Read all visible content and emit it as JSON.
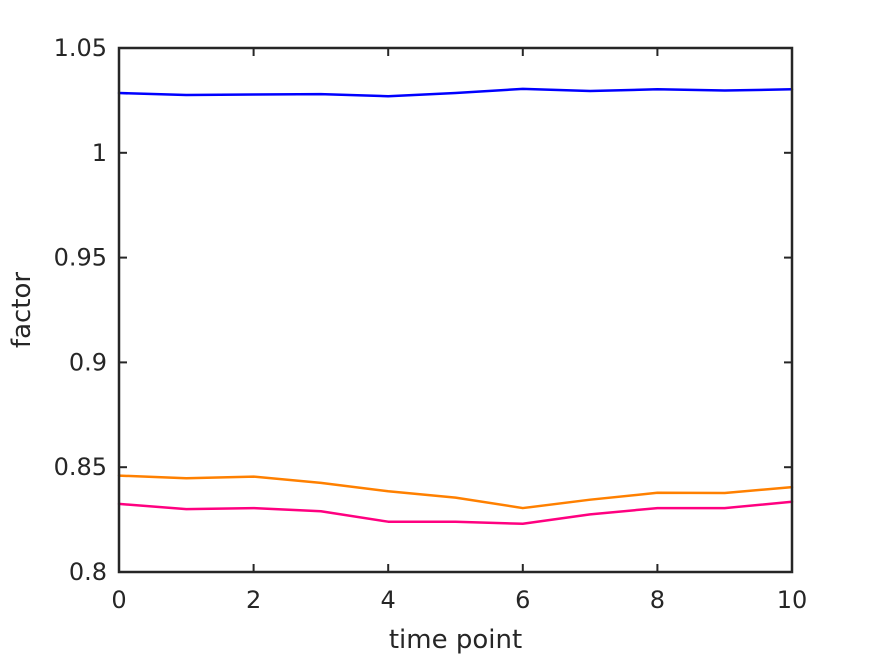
{
  "chart_data": {
    "type": "line",
    "xlabel": "time point",
    "ylabel": "factor",
    "xlim": [
      0,
      10
    ],
    "ylim": [
      0.8,
      1.05
    ],
    "xticks": [
      0,
      2,
      4,
      6,
      8,
      10
    ],
    "xtick_labels": [
      "0",
      "2",
      "4",
      "6",
      "8",
      "10"
    ],
    "yticks": [
      0.8,
      0.85,
      0.9,
      0.95,
      1,
      1.05
    ],
    "ytick_labels": [
      "0.8",
      "0.85",
      "0.9",
      "0.95",
      "1",
      "1.05"
    ],
    "grid": false,
    "x": [
      0,
      1,
      2,
      3,
      4,
      5,
      6,
      7,
      8,
      9,
      10
    ],
    "series": [
      {
        "color": "#0000ff",
        "values": [
          1.0285,
          1.0276,
          1.0278,
          1.028,
          1.027,
          1.0285,
          1.0305,
          1.0295,
          1.0303,
          1.0297,
          1.0303
        ]
      },
      {
        "color": "#ff8000",
        "values": [
          0.846,
          0.8447,
          0.8455,
          0.8425,
          0.8385,
          0.8355,
          0.8305,
          0.8345,
          0.8378,
          0.8377,
          0.8405
        ]
      },
      {
        "color": "#ff0080",
        "values": [
          0.8325,
          0.83,
          0.8305,
          0.829,
          0.824,
          0.824,
          0.823,
          0.8275,
          0.8305,
          0.8305,
          0.8335
        ]
      }
    ]
  }
}
